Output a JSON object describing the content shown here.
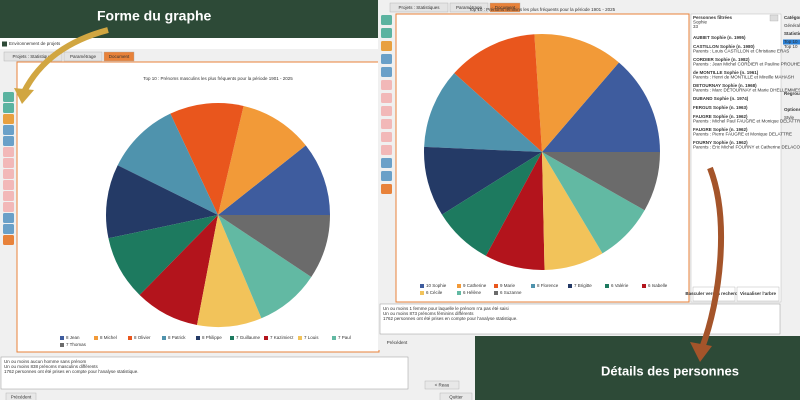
{
  "annotations": {
    "shape": "Forme du graphe",
    "details": "Détails des personnes"
  },
  "left_window": {
    "title": "Environnement de projets",
    "tabs": [
      "Projets : Statistiques",
      "Paramétrage",
      "Document"
    ],
    "chart": {
      "type": "pie",
      "title": "Top 10 : Prénoms masculins les plus fréquents pour la période 1901 - 2025",
      "categories": [
        "8 Jean",
        "8 Michel",
        "8 Olivier",
        "8 Patrick",
        "8 Philippe",
        "7 Guillaume",
        "7 Kazimierz",
        "7 Louis",
        "7 Paul",
        "7 Thomas"
      ],
      "values": [
        8,
        8,
        8,
        8,
        8,
        7,
        7,
        7,
        7,
        7
      ],
      "colors": [
        "#3e5c9e",
        "#f29a38",
        "#e9561d",
        "#4f93ad",
        "#243a66",
        "#1d7a5f",
        "#b3141c",
        "#f2c35a",
        "#62b9a3",
        "#6b6b6b"
      ]
    },
    "log": [
      "Un ou moins aucun homme sans prénom",
      "Un ou moins 838 prénoms masculins différents",
      "1762 personnes ont été prises en compte pour l'analyse statistique."
    ],
    "buttons": [
      "Précédent",
      "< Reau",
      "Quitter"
    ]
  },
  "right_window": {
    "tabs": [
      "Projets : Statistiques",
      "Paramétrage",
      "Document"
    ],
    "chart": {
      "type": "pie",
      "title": "Top 10 : Prénoms féminins les plus fréquents pour la période 1901 - 2025",
      "categories": [
        "10 Sophie",
        "9 Catherine",
        "9 Marie",
        "8 Florence",
        "7 Brigitte",
        "6 Valérie",
        "6 Isabelle",
        "6 Cécile",
        "6 Hélène",
        "6 Suzanne"
      ],
      "values": [
        10,
        9,
        9,
        8,
        7,
        6,
        6,
        6,
        6,
        6
      ],
      "colors": [
        "#3e5c9e",
        "#f29a38",
        "#e9561d",
        "#4f93ad",
        "#243a66",
        "#1d7a5f",
        "#b3141c",
        "#f2c35a",
        "#62b9a3",
        "#6b6b6b"
      ]
    },
    "log": [
      "Un ou moins 1 femme pour laquelle le prénom n'a pas été saisi",
      "Un ou moins 873 prénoms féminins différents",
      "1762 personnes ont été prises en compte pour l'analyse statistique."
    ],
    "persons": {
      "header": [
        "Personnes filtrées",
        "Sophie",
        "33"
      ],
      "entries": [
        {
          "name": "AUBIET Sophie (n. 1995)",
          "parents": ""
        },
        {
          "name": "CASTILLON Sophie (n. 1980)",
          "parents": "Parents : Louis CASTILLON et Christiane ERAS"
        },
        {
          "name": "CORDIER Sophie (n. 1982)",
          "parents": "Parents : Jean Michel CORDIER et Pauline PROUHEST"
        },
        {
          "name": "de MONTILLE Sophie (n. 1961)",
          "parents": "Parents : Henri de MONTILLE et Mireille MAHASH"
        },
        {
          "name": "DETOURNAY Sophie (n. 1968)",
          "parents": "Parents : Marc DETOURNAY et Marie DHELLEMMES"
        },
        {
          "name": "DUBAND Sophie (n. 1974)",
          "parents": ""
        },
        {
          "name": "FERGUS Sophie (n. 1963)",
          "parents": ""
        },
        {
          "name": "FAUGRE Sophie (n. 1962)",
          "parents": "Parents : Michel Paul FAUGRE et Monique DELATTRE"
        },
        {
          "name": "FAUGRE Sophie (n. 1962)",
          "parents": "Parents : Pierre FAUGRE et Monique DELATTRE"
        },
        {
          "name": "FOURNY Sophie (n. 1962)",
          "parents": "Parents : Eric Michel FOURNY et Catherine DELACOUR"
        }
      ]
    },
    "buttons": [
      "Basculer vers la recherche",
      "Visualiser l'arbre"
    ],
    "side": [
      "Catégorie",
      "Général",
      "Statistiques",
      "Top 10",
      "Top 10",
      "Regroupement",
      "Options",
      "Style"
    ],
    "footer": "Précédent"
  }
}
